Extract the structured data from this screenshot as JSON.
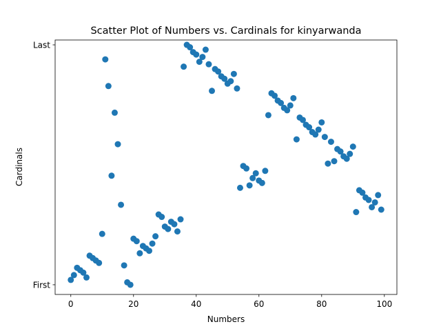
{
  "chart_data": {
    "type": "scatter",
    "title": "Scatter Plot of Numbers vs. Cardinals for kinyarwanda",
    "xlabel": "Numbers",
    "ylabel": "Cardinals",
    "xlim": [
      -5,
      104
    ],
    "ylim": [
      -4,
      101
    ],
    "x_ticks": [
      0,
      20,
      40,
      60,
      80,
      100
    ],
    "x_tick_labels": [
      "0",
      "20",
      "40",
      "60",
      "80",
      "100"
    ],
    "y_ticks": [
      0,
      99
    ],
    "y_tick_labels": [
      "First",
      "Last"
    ],
    "grid": false,
    "marker_color": "#1f77b4",
    "points": [
      {
        "x": 0,
        "y": 2
      },
      {
        "x": 1,
        "y": 4
      },
      {
        "x": 2,
        "y": 7
      },
      {
        "x": 3,
        "y": 6
      },
      {
        "x": 4,
        "y": 5
      },
      {
        "x": 5,
        "y": 3
      },
      {
        "x": 6,
        "y": 12
      },
      {
        "x": 7,
        "y": 11
      },
      {
        "x": 8,
        "y": 10
      },
      {
        "x": 9,
        "y": 9
      },
      {
        "x": 10,
        "y": 21
      },
      {
        "x": 11,
        "y": 93
      },
      {
        "x": 12,
        "y": 82
      },
      {
        "x": 13,
        "y": 45
      },
      {
        "x": 14,
        "y": 71
      },
      {
        "x": 15,
        "y": 58
      },
      {
        "x": 16,
        "y": 33
      },
      {
        "x": 17,
        "y": 8
      },
      {
        "x": 18,
        "y": 1
      },
      {
        "x": 19,
        "y": 0
      },
      {
        "x": 20,
        "y": 19
      },
      {
        "x": 21,
        "y": 18
      },
      {
        "x": 22,
        "y": 13
      },
      {
        "x": 23,
        "y": 16
      },
      {
        "x": 24,
        "y": 15
      },
      {
        "x": 25,
        "y": 14
      },
      {
        "x": 26,
        "y": 17
      },
      {
        "x": 27,
        "y": 20
      },
      {
        "x": 28,
        "y": 29
      },
      {
        "x": 29,
        "y": 28
      },
      {
        "x": 30,
        "y": 24
      },
      {
        "x": 31,
        "y": 23
      },
      {
        "x": 32,
        "y": 26
      },
      {
        "x": 33,
        "y": 25
      },
      {
        "x": 34,
        "y": 22
      },
      {
        "x": 35,
        "y": 27
      },
      {
        "x": 36,
        "y": 90
      },
      {
        "x": 37,
        "y": 99
      },
      {
        "x": 38,
        "y": 98
      },
      {
        "x": 39,
        "y": 96
      },
      {
        "x": 40,
        "y": 95
      },
      {
        "x": 41,
        "y": 92
      },
      {
        "x": 42,
        "y": 94
      },
      {
        "x": 43,
        "y": 97
      },
      {
        "x": 44,
        "y": 91
      },
      {
        "x": 45,
        "y": 80
      },
      {
        "x": 46,
        "y": 89
      },
      {
        "x": 47,
        "y": 88
      },
      {
        "x": 48,
        "y": 86
      },
      {
        "x": 49,
        "y": 85
      },
      {
        "x": 50,
        "y": 83
      },
      {
        "x": 51,
        "y": 84
      },
      {
        "x": 52,
        "y": 87
      },
      {
        "x": 53,
        "y": 81
      },
      {
        "x": 54,
        "y": 40
      },
      {
        "x": 55,
        "y": 49
      },
      {
        "x": 56,
        "y": 48
      },
      {
        "x": 57,
        "y": 41
      },
      {
        "x": 58,
        "y": 44
      },
      {
        "x": 59,
        "y": 46
      },
      {
        "x": 60,
        "y": 43
      },
      {
        "x": 61,
        "y": 42
      },
      {
        "x": 62,
        "y": 47
      },
      {
        "x": 63,
        "y": 70
      },
      {
        "x": 64,
        "y": 79
      },
      {
        "x": 65,
        "y": 78
      },
      {
        "x": 66,
        "y": 76
      },
      {
        "x": 67,
        "y": 75
      },
      {
        "x": 68,
        "y": 73
      },
      {
        "x": 69,
        "y": 72
      },
      {
        "x": 70,
        "y": 74
      },
      {
        "x": 71,
        "y": 77
      },
      {
        "x": 72,
        "y": 60
      },
      {
        "x": 73,
        "y": 69
      },
      {
        "x": 74,
        "y": 68
      },
      {
        "x": 75,
        "y": 66
      },
      {
        "x": 76,
        "y": 65
      },
      {
        "x": 77,
        "y": 63
      },
      {
        "x": 78,
        "y": 62
      },
      {
        "x": 79,
        "y": 64
      },
      {
        "x": 80,
        "y": 67
      },
      {
        "x": 81,
        "y": 61
      },
      {
        "x": 82,
        "y": 50
      },
      {
        "x": 83,
        "y": 59
      },
      {
        "x": 84,
        "y": 51
      },
      {
        "x": 85,
        "y": 56
      },
      {
        "x": 86,
        "y": 55
      },
      {
        "x": 87,
        "y": 53
      },
      {
        "x": 88,
        "y": 52
      },
      {
        "x": 89,
        "y": 54
      },
      {
        "x": 90,
        "y": 57
      },
      {
        "x": 91,
        "y": 30
      },
      {
        "x": 92,
        "y": 39
      },
      {
        "x": 93,
        "y": 38
      },
      {
        "x": 94,
        "y": 36
      },
      {
        "x": 95,
        "y": 35
      },
      {
        "x": 96,
        "y": 32
      },
      {
        "x": 97,
        "y": 34
      },
      {
        "x": 98,
        "y": 37
      },
      {
        "x": 99,
        "y": 31
      }
    ]
  }
}
